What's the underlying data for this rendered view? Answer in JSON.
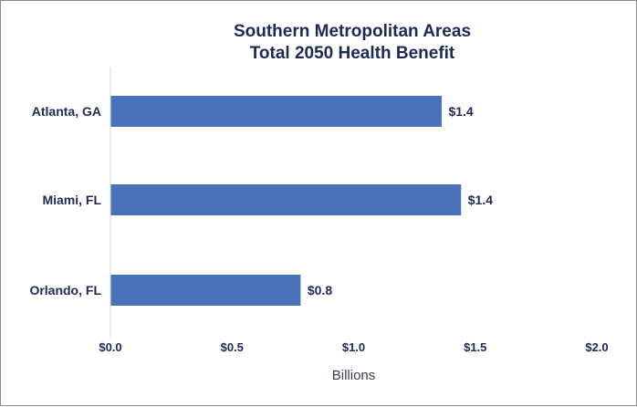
{
  "chart_data": {
    "type": "bar",
    "orientation": "horizontal",
    "title_lines": [
      "Southern Metropolitan Areas",
      "Total 2050 Health Benefit"
    ],
    "categories": [
      "Atlanta, GA",
      "Miami, FL",
      "Orlando, FL"
    ],
    "values": [
      1.36,
      1.44,
      0.78
    ],
    "data_labels": [
      "$1.4",
      "$1.4",
      "$0.8"
    ],
    "xlim": [
      0,
      2.0
    ],
    "xticks": [
      0,
      0.5,
      1.0,
      1.5,
      2.0
    ],
    "xtick_labels": [
      "$0.0",
      "$0.5",
      "$1.0",
      "$1.5",
      "$2.0"
    ],
    "xlabel": "Billions",
    "ylabel": "",
    "grid": false,
    "legend": "none",
    "bar_color": "#4a72ba",
    "text_color": "#1c2a55"
  }
}
